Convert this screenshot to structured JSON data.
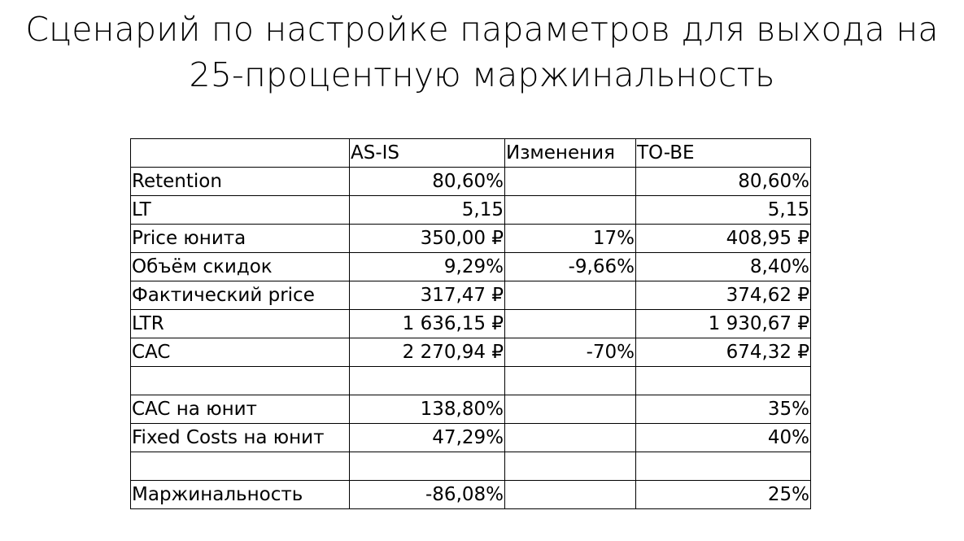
{
  "title": {
    "line1": "Сценарий по настройке параметров для выхода на",
    "line2": "25-процентную маржинальность"
  },
  "table": {
    "headers": [
      "",
      "AS-IS",
      "Изменения",
      "TO-BE"
    ],
    "rows": [
      [
        "Retention",
        "80,60%",
        "",
        "80,60%"
      ],
      [
        "LT",
        "5,15",
        "",
        "5,15"
      ],
      [
        "Price юнита",
        "350,00 ₽",
        "17%",
        "408,95 ₽"
      ],
      [
        "Объём скидок",
        "9,29%",
        "-9,66%",
        "8,40%"
      ],
      [
        "Фактический price",
        "317,47 ₽",
        "",
        "374,62 ₽"
      ],
      [
        "LTR",
        "1 636,15 ₽",
        "",
        "1 930,67 ₽"
      ],
      [
        "CAC",
        "2 270,94 ₽",
        "-70%",
        "674,32 ₽"
      ],
      [
        "",
        "",
        "",
        ""
      ],
      [
        "CAC на юнит",
        "138,80%",
        "",
        "35%"
      ],
      [
        "Fixed Costs на юнит",
        "47,29%",
        "",
        "40%"
      ],
      [
        "",
        "",
        "",
        ""
      ],
      [
        "Маржинальность",
        "-86,08%",
        "",
        "25%"
      ]
    ]
  }
}
